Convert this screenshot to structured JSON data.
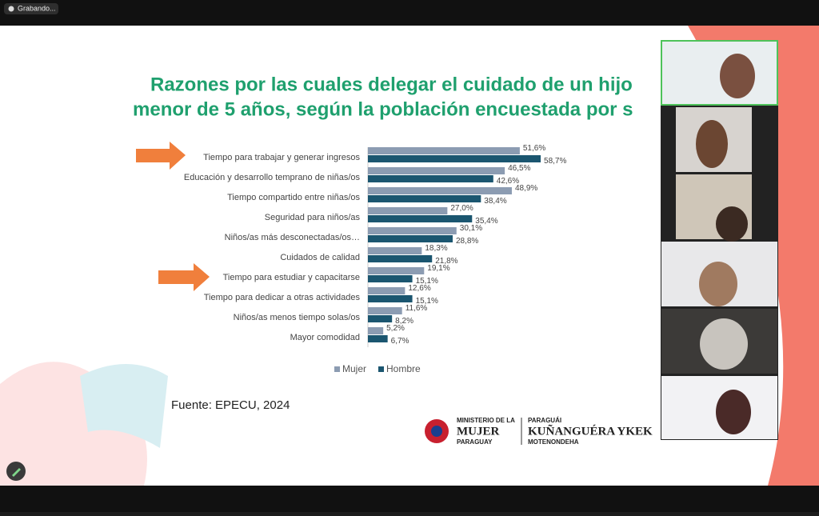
{
  "recording_label": "Grabando...",
  "slide": {
    "title": [
      "Razones por las cuales delegar el cuidado de un hijo",
      "menor de 5 años, según la población encuestada por s"
    ],
    "source": "Fuente: EPECU, 2024",
    "logo": {
      "ministry_line1": "MINISTERIO DE LA",
      "ministry_line2": "MUJER",
      "ministry_line3": "PARAGUAY",
      "guarani_line1": "PARAGUÁI",
      "guarani_line2": "KUÑANGUÉRA YKEK",
      "guarani_line3": "MOTENONDEHA"
    }
  },
  "chart_data": {
    "type": "bar",
    "orientation": "horizontal",
    "categories": [
      "Tiempo para trabajar y generar ingresos",
      "Educación y desarrollo temprano de niñas/os",
      "Tiempo compartido entre niñas/os",
      "Seguridad para niños/as",
      "Niños/as más desconectadas/os…",
      "Cuidados de calidad",
      "Tiempo para estudiar y capacitarse",
      "Tiempo para dedicar a otras actividades",
      "Niños/as menos tiempo solas/os",
      "Mayor comodidad"
    ],
    "series": [
      {
        "name": "Mujer",
        "color": "#8c9cb2",
        "values": [
          51.6,
          46.5,
          48.9,
          27.0,
          30.1,
          18.3,
          19.1,
          12.6,
          11.6,
          5.2
        ],
        "value_labels": [
          "51,6%",
          "46,5%",
          "48,9%",
          "27,0%",
          "30,1%",
          "18,3%",
          "19,1%",
          "12,6%",
          "11,6%",
          "5,2%"
        ]
      },
      {
        "name": "Hombre",
        "color": "#1b5670",
        "values": [
          58.7,
          42.6,
          38.4,
          35.4,
          28.8,
          21.8,
          15.1,
          15.1,
          8.2,
          6.7
        ],
        "value_labels": [
          "58,7%",
          "42,6%",
          "38,4%",
          "35,4%",
          "28,8%",
          "21,8%",
          "15,1%",
          "15,1%",
          "8,2%",
          "6,7%"
        ]
      }
    ]
  }
}
